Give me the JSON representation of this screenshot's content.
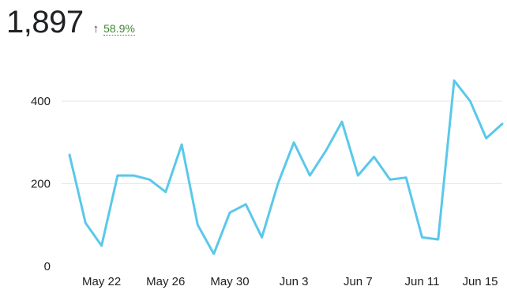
{
  "summary": {
    "total": "1,897",
    "delta_arrow": "↑",
    "delta_value": "58.9%"
  },
  "chart_data": {
    "type": "line",
    "title": "",
    "xlabel": "",
    "ylabel": "",
    "grid": true,
    "legend": "none",
    "ylim": [
      0,
      480
    ],
    "x_tick_labels": [
      "May 22",
      "May 26",
      "May 30",
      "Jun 3",
      "Jun 7",
      "Jun 11",
      "Jun 15"
    ],
    "y_tick_labels": [
      "0",
      "200",
      "400"
    ],
    "y_ticks": [
      0,
      200,
      400
    ],
    "line_color": "#5ac8ea",
    "x": [
      "May 20",
      "May 21",
      "May 22",
      "May 23",
      "May 24",
      "May 25",
      "May 26",
      "May 27",
      "May 28",
      "May 29",
      "May 30",
      "May 31",
      "Jun 1",
      "Jun 2",
      "Jun 3",
      "Jun 4",
      "Jun 5",
      "Jun 6",
      "Jun 7",
      "Jun 8",
      "Jun 9",
      "Jun 10",
      "Jun 11",
      "Jun 12",
      "Jun 13",
      "Jun 14",
      "Jun 15",
      "Jun 16"
    ],
    "series": [
      {
        "values": [
          270,
          105,
          50,
          220,
          220,
          210,
          180,
          295,
          100,
          30,
          130,
          150,
          70,
          200,
          300,
          220,
          280,
          350,
          220,
          265,
          210,
          215,
          70,
          65,
          450,
          400,
          310,
          345
        ]
      }
    ]
  }
}
